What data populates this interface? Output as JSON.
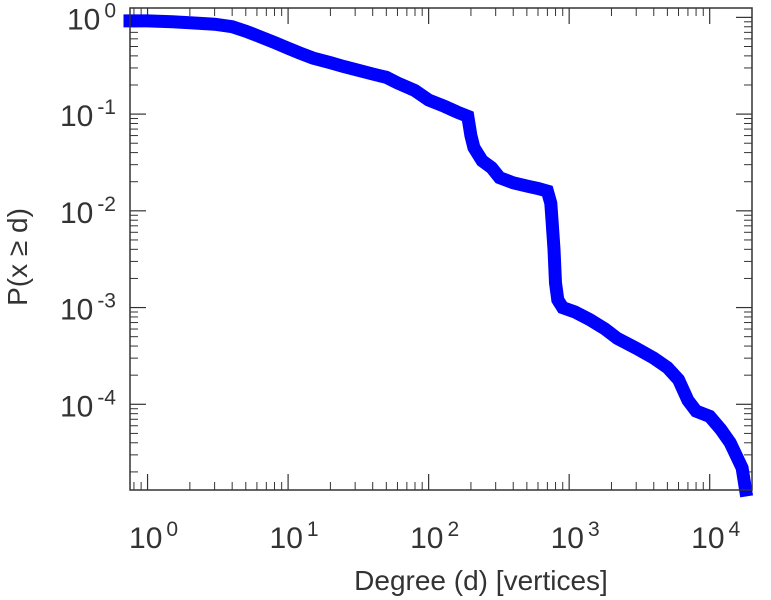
{
  "chart_data": {
    "type": "line",
    "title": "",
    "xlabel": "Degree (d) [vertices]",
    "ylabel": "P(x ≥ d)",
    "xscale": "log",
    "yscale": "log",
    "xlim": [
      0.75,
      20000
    ],
    "ylim": [
      1.3e-05,
      1.25
    ],
    "grid": false,
    "legend": "none",
    "series": [
      {
        "color": "#0000ff",
        "points": [
          [
            0.75,
            0.92
          ],
          [
            1,
            0.92
          ],
          [
            1.5,
            0.9
          ],
          [
            2,
            0.88
          ],
          [
            3,
            0.85
          ],
          [
            4,
            0.8
          ],
          [
            5,
            0.72
          ],
          [
            6,
            0.65
          ],
          [
            8,
            0.55
          ],
          [
            10,
            0.48
          ],
          [
            12,
            0.43
          ],
          [
            15,
            0.38
          ],
          [
            20,
            0.34
          ],
          [
            25,
            0.31
          ],
          [
            30,
            0.29
          ],
          [
            40,
            0.26
          ],
          [
            50,
            0.24
          ],
          [
            60,
            0.21
          ],
          [
            80,
            0.175
          ],
          [
            100,
            0.14
          ],
          [
            130,
            0.12
          ],
          [
            160,
            0.105
          ],
          [
            190,
            0.095
          ],
          [
            200,
            0.06
          ],
          [
            210,
            0.045
          ],
          [
            240,
            0.033
          ],
          [
            280,
            0.028
          ],
          [
            320,
            0.022
          ],
          [
            400,
            0.0195
          ],
          [
            500,
            0.018
          ],
          [
            600,
            0.017
          ],
          [
            700,
            0.016
          ],
          [
            740,
            0.012
          ],
          [
            760,
            0.007
          ],
          [
            780,
            0.004
          ],
          [
            800,
            0.0018
          ],
          [
            830,
            0.0012
          ],
          [
            900,
            0.001
          ],
          [
            1100,
            0.0009
          ],
          [
            1400,
            0.00075
          ],
          [
            1800,
            0.0006
          ],
          [
            2200,
            0.00048
          ],
          [
            3000,
            0.00038
          ],
          [
            4000,
            0.0003
          ],
          [
            5000,
            0.00024
          ],
          [
            6000,
            0.00018
          ],
          [
            7000,
            0.00011
          ],
          [
            8000,
            8.5e-05
          ],
          [
            10000,
            7.5e-05
          ],
          [
            12000,
            5.5e-05
          ],
          [
            14000,
            4e-05
          ],
          [
            17000,
            2.2e-05
          ],
          [
            18000,
            1.3e-05
          ]
        ]
      }
    ],
    "x_ticks": [
      {
        "value": 1,
        "base": "10",
        "exp": "0"
      },
      {
        "value": 10,
        "base": "10",
        "exp": "1"
      },
      {
        "value": 100,
        "base": "10",
        "exp": "2"
      },
      {
        "value": 1000,
        "base": "10",
        "exp": "3"
      },
      {
        "value": 10000,
        "base": "10",
        "exp": "4"
      }
    ],
    "y_ticks": [
      {
        "value": 1,
        "base": "10",
        "exp": "0"
      },
      {
        "value": 0.1,
        "base": "10",
        "exp": "-1"
      },
      {
        "value": 0.01,
        "base": "10",
        "exp": "-2"
      },
      {
        "value": 0.001,
        "base": "10",
        "exp": "-3"
      },
      {
        "value": 0.0001,
        "base": "10",
        "exp": "-4"
      }
    ]
  }
}
